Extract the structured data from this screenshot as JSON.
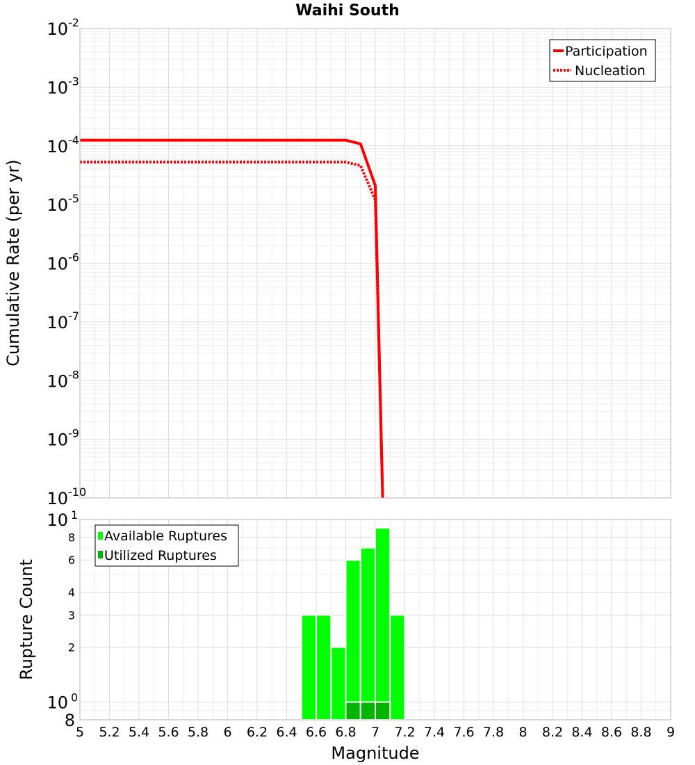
{
  "chart_data": {
    "title": "Waihi South",
    "xlabel": "Magnitude",
    "xlim": [
      5,
      9
    ],
    "x_ticks": [
      "5",
      "5.2",
      "5.4",
      "5.6",
      "5.8",
      "6",
      "6.2",
      "6.4",
      "6.6",
      "6.8",
      "7",
      "7.2",
      "7.4",
      "7.6",
      "7.8",
      "8",
      "8.2",
      "8.4",
      "8.6",
      "8.8",
      "9"
    ],
    "panels": [
      {
        "type": "line",
        "ylabel": "Cumulative Rate (per yr)",
        "yscale": "log",
        "ylim": [
          1e-10,
          0.01
        ],
        "y_ticks": [
          {
            "base": "10",
            "exp": "-2"
          },
          {
            "base": "10",
            "exp": "-3"
          },
          {
            "base": "10",
            "exp": "-4"
          },
          {
            "base": "10",
            "exp": "-5"
          },
          {
            "base": "10",
            "exp": "-6"
          },
          {
            "base": "10",
            "exp": "-7"
          },
          {
            "base": "10",
            "exp": "-8"
          },
          {
            "base": "10",
            "exp": "-9"
          },
          {
            "base": "10",
            "exp": "-10"
          }
        ],
        "legend": {
          "placement": "top-right"
        },
        "series": [
          {
            "name": "Participation",
            "style": "solid",
            "color": "#ff0000",
            "x": [
              5.0,
              6.8,
              6.9,
              7.0,
              7.05
            ],
            "y": [
              0.000125,
              0.000125,
              0.000108,
              2.1e-05,
              1e-10
            ]
          },
          {
            "name": "Nucleation",
            "style": "dotted",
            "color": "#ff0000",
            "x": [
              5.0,
              6.8,
              6.9,
              7.0,
              7.05
            ],
            "y": [
              5.3e-05,
              5.3e-05,
              4.6e-05,
              1.2e-05,
              1e-10
            ]
          }
        ]
      },
      {
        "type": "bar",
        "ylabel": "Rupture Count",
        "yscale": "log",
        "ylim": [
          0.8,
          10
        ],
        "y_ticks_major": [
          {
            "value": 10,
            "base": "10",
            "exp": "1"
          },
          {
            "value": 1,
            "base": "10",
            "exp": "0"
          }
        ],
        "y_ticks_minor": [
          {
            "value": 8,
            "label": "8"
          },
          {
            "value": 6,
            "label": "6"
          },
          {
            "value": 4,
            "label": "4"
          },
          {
            "value": 3,
            "label": "3"
          },
          {
            "value": 2,
            "label": "2"
          }
        ],
        "y_tick_bottom": {
          "value": 0.8,
          "label": "8"
        },
        "legend": {
          "placement": "top-left"
        },
        "bin_width": 0.1,
        "series": [
          {
            "name": "Available Ruptures",
            "color": "#00ff00",
            "centers": [
              6.55,
              6.65,
              6.75,
              6.85,
              6.95,
              7.05,
              7.15
            ],
            "values": [
              3,
              3,
              2,
              6,
              7,
              9,
              3
            ]
          },
          {
            "name": "Utilized Ruptures",
            "color": "#00b400",
            "centers": [
              6.85,
              6.95,
              7.05
            ],
            "values": [
              1,
              1,
              1
            ]
          }
        ]
      }
    ]
  }
}
